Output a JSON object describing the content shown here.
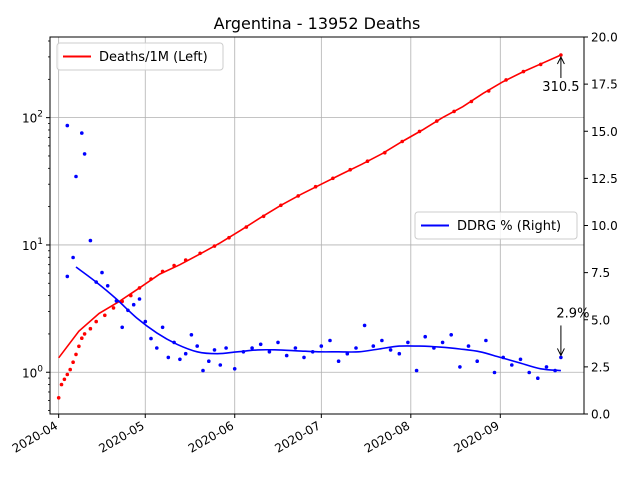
{
  "chart_data": {
    "type": "line",
    "title": "Argentina - 13952 Deaths",
    "x_axis": {
      "kind": "date",
      "range": [
        "2020-03-29",
        "2020-09-30"
      ],
      "ticks": [
        "2020-04-01",
        "2020-05-01",
        "2020-06-01",
        "2020-07-01",
        "2020-08-01",
        "2020-09-01"
      ],
      "tick_labels": [
        "2020-04",
        "2020-05",
        "2020-06",
        "2020-07",
        "2020-08",
        "2020-09"
      ]
    },
    "left_axis": {
      "scale": "log",
      "range": [
        0.47,
        430
      ],
      "ticks": [
        1,
        10,
        100
      ],
      "tick_labels": [
        "10^0",
        "10^1",
        "10^2"
      ]
    },
    "right_axis": {
      "scale": "linear",
      "range": [
        0,
        20
      ],
      "ticks": [
        0,
        2.5,
        5,
        7.5,
        10,
        12.5,
        15,
        17.5,
        20
      ],
      "tick_labels": [
        "0.0",
        "2.5",
        "5.0",
        "7.5",
        "10.0",
        "12.5",
        "15.0",
        "17.5",
        "20.0"
      ]
    },
    "grid": true,
    "legends": [
      {
        "label": "Deaths/1M (Left)",
        "color": "#ff0000",
        "placement": "upper-left"
      },
      {
        "label": "DDRG % (Right)",
        "color": "#0000ff",
        "placement": "center-right"
      }
    ],
    "series": [
      {
        "name": "Deaths/1M (Left)",
        "axis": "left",
        "color": "#ff0000",
        "style": "line+markers",
        "points": [
          [
            "2020-04-01",
            1.3
          ],
          [
            "2020-04-08",
            2.1
          ],
          [
            "2020-04-15",
            2.9
          ],
          [
            "2020-04-22",
            3.6
          ],
          [
            "2020-04-29",
            4.6
          ],
          [
            "2020-05-06",
            5.9
          ],
          [
            "2020-05-13",
            7.0
          ],
          [
            "2020-05-20",
            8.5
          ],
          [
            "2020-05-27",
            10.4
          ],
          [
            "2020-06-03",
            13.0
          ],
          [
            "2020-06-10",
            16.4
          ],
          [
            "2020-06-17",
            20.5
          ],
          [
            "2020-06-24",
            25.0
          ],
          [
            "2020-07-01",
            30.0
          ],
          [
            "2020-07-08",
            36.0
          ],
          [
            "2020-07-15",
            43.0
          ],
          [
            "2020-07-22",
            52.0
          ],
          [
            "2020-07-29",
            65.0
          ],
          [
            "2020-08-05",
            80.0
          ],
          [
            "2020-08-12",
            100.0
          ],
          [
            "2020-08-19",
            122.0
          ],
          [
            "2020-08-26",
            155.0
          ],
          [
            "2020-09-02",
            192.0
          ],
          [
            "2020-09-09",
            230.0
          ],
          [
            "2020-09-16",
            270.0
          ],
          [
            "2020-09-22",
            310.5
          ]
        ],
        "scatter": [
          [
            "2020-04-01",
            0.63
          ],
          [
            "2020-04-02",
            0.8
          ],
          [
            "2020-04-03",
            0.88
          ],
          [
            "2020-04-04",
            0.96
          ],
          [
            "2020-04-05",
            1.05
          ],
          [
            "2020-04-06",
            1.2
          ],
          [
            "2020-04-07",
            1.38
          ],
          [
            "2020-04-08",
            1.6
          ],
          [
            "2020-04-09",
            1.85
          ],
          [
            "2020-04-10",
            2.0
          ],
          [
            "2020-04-12",
            2.2
          ],
          [
            "2020-04-14",
            2.5
          ],
          [
            "2020-04-17",
            2.8
          ],
          [
            "2020-04-20",
            3.2
          ],
          [
            "2020-04-23",
            3.6
          ],
          [
            "2020-04-26",
            4.0
          ],
          [
            "2020-04-29",
            4.6
          ],
          [
            "2020-05-03",
            5.4
          ],
          [
            "2020-05-07",
            6.2
          ],
          [
            "2020-05-11",
            6.9
          ],
          [
            "2020-05-15",
            7.6
          ],
          [
            "2020-05-20",
            8.6
          ],
          [
            "2020-05-25",
            9.8
          ],
          [
            "2020-05-30",
            11.4
          ],
          [
            "2020-06-05",
            13.8
          ],
          [
            "2020-06-11",
            16.8
          ],
          [
            "2020-06-17",
            20.5
          ],
          [
            "2020-06-23",
            24.3
          ],
          [
            "2020-06-29",
            28.7
          ],
          [
            "2020-07-05",
            33.4
          ],
          [
            "2020-07-11",
            39.0
          ],
          [
            "2020-07-17",
            45.5
          ],
          [
            "2020-07-23",
            53.0
          ],
          [
            "2020-07-29",
            65.0
          ],
          [
            "2020-08-04",
            78.0
          ],
          [
            "2020-08-10",
            94.0
          ],
          [
            "2020-08-16",
            112.0
          ],
          [
            "2020-08-22",
            134.0
          ],
          [
            "2020-08-28",
            162.0
          ],
          [
            "2020-09-03",
            198.0
          ],
          [
            "2020-09-09",
            230.0
          ],
          [
            "2020-09-15",
            262.0
          ],
          [
            "2020-09-22",
            310.5
          ]
        ]
      },
      {
        "name": "DDRG % (Right)",
        "axis": "right",
        "color": "#0000ff",
        "style": "smoothed-line",
        "points": [
          [
            "2020-04-07",
            7.8
          ],
          [
            "2020-04-14",
            7.0
          ],
          [
            "2020-04-21",
            6.1
          ],
          [
            "2020-04-28",
            5.1
          ],
          [
            "2020-05-05",
            4.3
          ],
          [
            "2020-05-12",
            3.7
          ],
          [
            "2020-05-19",
            3.3
          ],
          [
            "2020-05-26",
            3.2
          ],
          [
            "2020-06-02",
            3.3
          ],
          [
            "2020-06-09",
            3.4
          ],
          [
            "2020-06-16",
            3.4
          ],
          [
            "2020-06-23",
            3.35
          ],
          [
            "2020-06-30",
            3.3
          ],
          [
            "2020-07-07",
            3.3
          ],
          [
            "2020-07-14",
            3.3
          ],
          [
            "2020-07-21",
            3.45
          ],
          [
            "2020-07-28",
            3.6
          ],
          [
            "2020-08-04",
            3.6
          ],
          [
            "2020-08-11",
            3.55
          ],
          [
            "2020-08-18",
            3.45
          ],
          [
            "2020-08-25",
            3.3
          ],
          [
            "2020-09-01",
            3.0
          ],
          [
            "2020-09-08",
            2.7
          ],
          [
            "2020-09-15",
            2.4
          ],
          [
            "2020-09-22",
            2.3
          ]
        ],
        "scatter": [
          [
            "2020-04-04",
            15.3
          ],
          [
            "2020-04-07",
            12.6
          ],
          [
            "2020-04-09",
            14.9
          ],
          [
            "2020-04-10",
            13.8
          ],
          [
            "2020-04-06",
            8.3
          ],
          [
            "2020-04-12",
            9.2
          ],
          [
            "2020-04-14",
            7.0
          ],
          [
            "2020-04-04",
            7.3
          ],
          [
            "2020-04-16",
            7.5
          ],
          [
            "2020-04-18",
            6.8
          ],
          [
            "2020-04-21",
            6.0
          ],
          [
            "2020-04-23",
            4.6
          ],
          [
            "2020-04-25",
            5.5
          ],
          [
            "2020-04-27",
            5.8
          ],
          [
            "2020-04-29",
            6.1
          ],
          [
            "2020-05-01",
            4.9
          ],
          [
            "2020-05-03",
            4.0
          ],
          [
            "2020-05-05",
            3.5
          ],
          [
            "2020-05-07",
            4.6
          ],
          [
            "2020-05-09",
            3.0
          ],
          [
            "2020-05-11",
            3.8
          ],
          [
            "2020-05-13",
            2.9
          ],
          [
            "2020-05-15",
            3.2
          ],
          [
            "2020-05-17",
            4.2
          ],
          [
            "2020-05-19",
            3.6
          ],
          [
            "2020-05-21",
            2.3
          ],
          [
            "2020-05-23",
            2.8
          ],
          [
            "2020-05-25",
            3.4
          ],
          [
            "2020-05-27",
            2.6
          ],
          [
            "2020-05-29",
            3.5
          ],
          [
            "2020-06-01",
            2.4
          ],
          [
            "2020-06-04",
            3.3
          ],
          [
            "2020-06-07",
            3.5
          ],
          [
            "2020-06-10",
            3.7
          ],
          [
            "2020-06-13",
            3.3
          ],
          [
            "2020-06-16",
            3.8
          ],
          [
            "2020-06-19",
            3.1
          ],
          [
            "2020-06-22",
            3.5
          ],
          [
            "2020-06-25",
            3.0
          ],
          [
            "2020-06-28",
            3.3
          ],
          [
            "2020-07-01",
            3.6
          ],
          [
            "2020-07-04",
            3.9
          ],
          [
            "2020-07-07",
            2.8
          ],
          [
            "2020-07-10",
            3.2
          ],
          [
            "2020-07-13",
            3.5
          ],
          [
            "2020-07-16",
            4.7
          ],
          [
            "2020-07-19",
            3.6
          ],
          [
            "2020-07-22",
            3.9
          ],
          [
            "2020-07-25",
            3.4
          ],
          [
            "2020-07-28",
            3.2
          ],
          [
            "2020-07-31",
            3.8
          ],
          [
            "2020-08-03",
            2.3
          ],
          [
            "2020-08-06",
            4.1
          ],
          [
            "2020-08-09",
            3.5
          ],
          [
            "2020-08-12",
            3.8
          ],
          [
            "2020-08-15",
            4.2
          ],
          [
            "2020-08-18",
            2.5
          ],
          [
            "2020-08-21",
            3.6
          ],
          [
            "2020-08-24",
            2.8
          ],
          [
            "2020-08-27",
            3.9
          ],
          [
            "2020-08-30",
            2.2
          ],
          [
            "2020-09-02",
            3.0
          ],
          [
            "2020-09-05",
            2.6
          ],
          [
            "2020-09-08",
            2.9
          ],
          [
            "2020-09-11",
            2.2
          ],
          [
            "2020-09-14",
            1.9
          ],
          [
            "2020-09-17",
            2.5
          ],
          [
            "2020-09-20",
            2.3
          ],
          [
            "2020-09-22",
            3.0
          ]
        ]
      }
    ],
    "annotations": [
      {
        "text": "310.5",
        "series": "Deaths/1M (Left)",
        "x": "2020-09-22",
        "y": 310.5
      },
      {
        "text": "2.9%",
        "series": "DDRG % (Right)",
        "x": "2020-09-22",
        "y": 3.0
      }
    ]
  }
}
